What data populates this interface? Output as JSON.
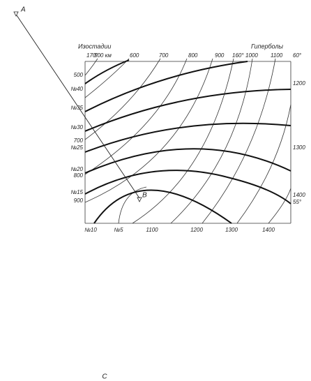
{
  "points": {
    "a": "A",
    "b": "B",
    "c": "C"
  },
  "legend": {
    "isostadia": "Изостадии",
    "hyperbolas": "Гиперболы"
  },
  "top_labels": [
    "170°",
    "500 км",
    "600",
    "700",
    "800",
    "900",
    "160°",
    "1000",
    "1100",
    "60°"
  ],
  "left_labels": [
    "500",
    "№40",
    "№35",
    "№30",
    "700",
    "№25",
    "№20",
    "800",
    "№15",
    "900"
  ],
  "bottom_labels": [
    "№10",
    "№5",
    "1100",
    "1200",
    "1300",
    "1400"
  ],
  "right_labels": [
    "1200",
    "1300",
    "1400",
    "55°"
  ]
}
